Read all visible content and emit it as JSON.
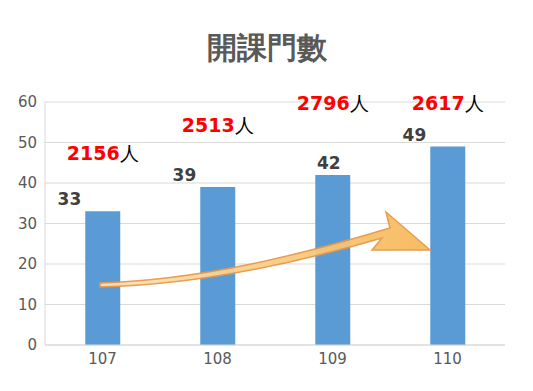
{
  "chart_data": {
    "type": "bar",
    "title": "開課門數",
    "categories": [
      "107",
      "108",
      "109",
      "110"
    ],
    "values": [
      33,
      39,
      42,
      49
    ],
    "color": "#5b9bd5",
    "ylim": [
      0,
      60
    ],
    "yticks": [
      0,
      10,
      20,
      30,
      40,
      50,
      60
    ],
    "grid": true,
    "data_labels": true,
    "annotations": [
      "2156人",
      "2513人",
      "2796人",
      "2617人"
    ]
  }
}
